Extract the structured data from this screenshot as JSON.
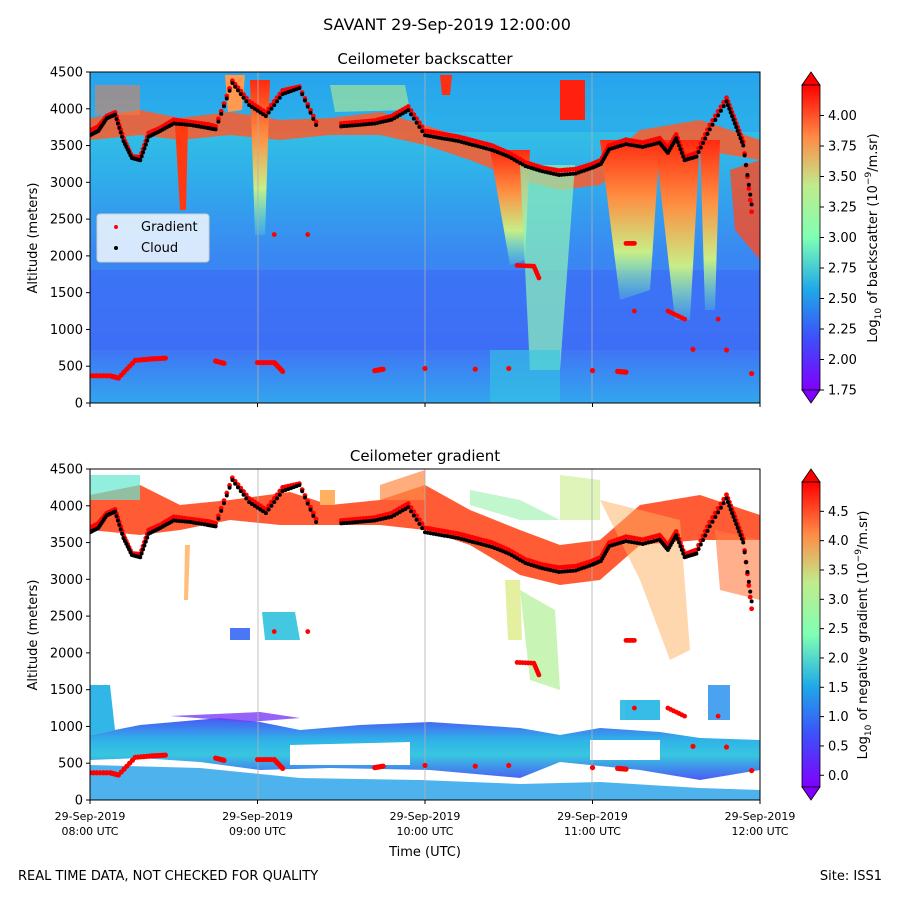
{
  "figure": {
    "suptitle": "SAVANT 29-Sep-2019 12:00:00",
    "footer_left": "REAL TIME DATA, NOT CHECKED FOR QUALITY",
    "footer_right": "Site: ISS1"
  },
  "colors": {
    "gradient_marker": "#ff0000",
    "cloud_marker": "#000000",
    "colormap": "rainbow"
  },
  "chart_data": [
    {
      "type": "heatmap",
      "title": "Ceilometer backscatter",
      "xlabel": "",
      "ylabel": "Altitude (meters)",
      "ylim": [
        0,
        4500
      ],
      "yticks": [
        0,
        500,
        1000,
        1500,
        2000,
        2500,
        3000,
        3500,
        4000,
        4500
      ],
      "xlim": [
        "08:00",
        "12:00"
      ],
      "xtick_labels": [],
      "vertical_gridlines_at": [
        "09:00",
        "10:00",
        "11:00"
      ],
      "colorbar": {
        "label_prefix": "Log",
        "label_sub": "10",
        "label_mid": " of backscatter (10",
        "label_sup": "−9",
        "label_suffix": "/m.sr)",
        "range": [
          1.75,
          4.25
        ],
        "ticks": [
          "1.75",
          "2.00",
          "2.25",
          "2.50",
          "2.75",
          "3.00",
          "3.25",
          "3.50",
          "3.75",
          "4.00"
        ],
        "extend": "both"
      },
      "legend": {
        "placement": "center-left",
        "entries": [
          "Gradient",
          "Cloud"
        ]
      }
    },
    {
      "type": "heatmap",
      "title": "Ceilometer gradient",
      "xlabel": "Time (UTC)",
      "ylabel": "Altitude (meters)",
      "ylim": [
        0,
        4500
      ],
      "yticks": [
        0,
        500,
        1000,
        1500,
        2000,
        2500,
        3000,
        3500,
        4000,
        4500
      ],
      "xlim": [
        "08:00",
        "12:00"
      ],
      "xtick_labels": [
        [
          "29-Sep-2019",
          "08:00 UTC"
        ],
        [
          "29-Sep-2019",
          "09:00 UTC"
        ],
        [
          "29-Sep-2019",
          "10:00 UTC"
        ],
        [
          "29-Sep-2019",
          "11:00 UTC"
        ],
        [
          "29-Sep-2019",
          "12:00 UTC"
        ]
      ],
      "vertical_gridlines_at": [
        "09:00",
        "10:00",
        "11:00"
      ],
      "colorbar": {
        "label_prefix": "Log",
        "label_sub": "10",
        "label_mid": " of negative gradient (10",
        "label_sup": "−9",
        "label_suffix": "/m.sr)",
        "range": [
          -0.2,
          5.0
        ],
        "ticks": [
          "0.0",
          "0.5",
          "1.0",
          "1.5",
          "2.0",
          "2.5",
          "3.0",
          "3.5",
          "4.0",
          "4.5"
        ],
        "extend": "both"
      }
    }
  ],
  "series": {
    "cloud_top": [
      [
        8.0,
        3640
      ],
      [
        8.05,
        3700
      ],
      [
        8.1,
        3870
      ],
      [
        8.15,
        3920
      ],
      [
        8.2,
        3560
      ],
      [
        8.25,
        3330
      ],
      [
        8.3,
        3300
      ],
      [
        8.35,
        3620
      ],
      [
        8.42,
        3700
      ],
      [
        8.5,
        3800
      ],
      [
        8.6,
        3780
      ],
      [
        8.7,
        3740
      ],
      [
        8.75,
        3720
      ],
      [
        8.85,
        4350
      ],
      [
        8.95,
        4050
      ],
      [
        9.05,
        3900
      ],
      [
        9.15,
        4200
      ],
      [
        9.25,
        4280
      ],
      [
        9.35,
        3780
      ],
      [
        9.5,
        3760
      ],
      [
        9.6,
        3780
      ],
      [
        9.7,
        3800
      ],
      [
        9.8,
        3850
      ],
      [
        9.9,
        3980
      ],
      [
        10.0,
        3640
      ],
      [
        10.1,
        3600
      ],
      [
        10.2,
        3560
      ],
      [
        10.3,
        3500
      ],
      [
        10.4,
        3440
      ],
      [
        10.5,
        3350
      ],
      [
        10.6,
        3220
      ],
      [
        10.7,
        3150
      ],
      [
        10.8,
        3100
      ],
      [
        10.9,
        3120
      ],
      [
        11.0,
        3200
      ],
      [
        11.05,
        3250
      ],
      [
        11.1,
        3450
      ],
      [
        11.2,
        3520
      ],
      [
        11.3,
        3480
      ],
      [
        11.4,
        3540
      ],
      [
        11.45,
        3400
      ],
      [
        11.5,
        3600
      ],
      [
        11.55,
        3300
      ],
      [
        11.62,
        3350
      ],
      [
        11.7,
        3720
      ],
      [
        11.8,
        4100
      ],
      [
        11.85,
        3800
      ],
      [
        11.9,
        3500
      ],
      [
        11.95,
        2700
      ]
    ],
    "gradient_top": [
      [
        8.0,
        3700
      ],
      [
        8.05,
        3760
      ],
      [
        8.1,
        3900
      ],
      [
        8.15,
        3950
      ],
      [
        8.2,
        3600
      ],
      [
        8.25,
        3350
      ],
      [
        8.3,
        3340
      ],
      [
        8.35,
        3670
      ],
      [
        8.42,
        3740
      ],
      [
        8.5,
        3850
      ],
      [
        8.6,
        3820
      ],
      [
        8.7,
        3790
      ],
      [
        8.75,
        3760
      ],
      [
        8.85,
        4380
      ],
      [
        8.95,
        4100
      ],
      [
        9.05,
        3950
      ],
      [
        9.15,
        4250
      ],
      [
        9.25,
        4300
      ],
      [
        9.35,
        3820
      ],
      [
        9.5,
        3800
      ],
      [
        9.6,
        3820
      ],
      [
        9.7,
        3840
      ],
      [
        9.8,
        3900
      ],
      [
        9.9,
        4030
      ],
      [
        10.0,
        3700
      ],
      [
        10.1,
        3660
      ],
      [
        10.2,
        3620
      ],
      [
        10.3,
        3560
      ],
      [
        10.4,
        3500
      ],
      [
        10.5,
        3400
      ],
      [
        10.6,
        3270
      ],
      [
        10.7,
        3200
      ],
      [
        10.8,
        3160
      ],
      [
        10.9,
        3180
      ],
      [
        11.0,
        3250
      ],
      [
        11.05,
        3300
      ],
      [
        11.1,
        3500
      ],
      [
        11.2,
        3580
      ],
      [
        11.3,
        3540
      ],
      [
        11.4,
        3600
      ],
      [
        11.45,
        3460
      ],
      [
        11.5,
        3650
      ],
      [
        11.55,
        3340
      ],
      [
        11.62,
        3400
      ],
      [
        11.7,
        3780
      ],
      [
        11.8,
        4150
      ],
      [
        11.85,
        3850
      ],
      [
        11.9,
        3550
      ],
      [
        11.95,
        2600
      ]
    ],
    "gradient_low": [
      [
        8.0,
        370
      ],
      [
        8.12,
        370
      ],
      [
        8.17,
        340
      ],
      [
        8.27,
        580
      ],
      [
        8.37,
        600
      ],
      [
        8.45,
        610
      ],
      [
        8.75,
        570
      ],
      [
        8.8,
        540
      ],
      [
        9.0,
        550
      ],
      [
        9.1,
        550
      ],
      [
        9.15,
        430
      ],
      [
        9.7,
        440
      ],
      [
        9.75,
        460
      ],
      [
        10.0,
        470
      ],
      [
        10.3,
        460
      ],
      [
        10.5,
        470
      ],
      [
        11.0,
        440
      ],
      [
        11.15,
        430
      ],
      [
        11.2,
        420
      ],
      [
        11.6,
        730
      ],
      [
        11.8,
        720
      ],
      [
        11.95,
        400
      ]
    ],
    "gradient_mid": [
      [
        9.1,
        2290
      ],
      [
        9.3,
        2290
      ],
      [
        10.55,
        1870
      ],
      [
        10.65,
        1860
      ],
      [
        10.68,
        1700
      ],
      [
        11.2,
        2170
      ],
      [
        11.25,
        2170
      ],
      [
        11.25,
        1250
      ],
      [
        11.45,
        1250
      ],
      [
        11.55,
        1140
      ],
      [
        11.75,
        1140
      ]
    ]
  }
}
